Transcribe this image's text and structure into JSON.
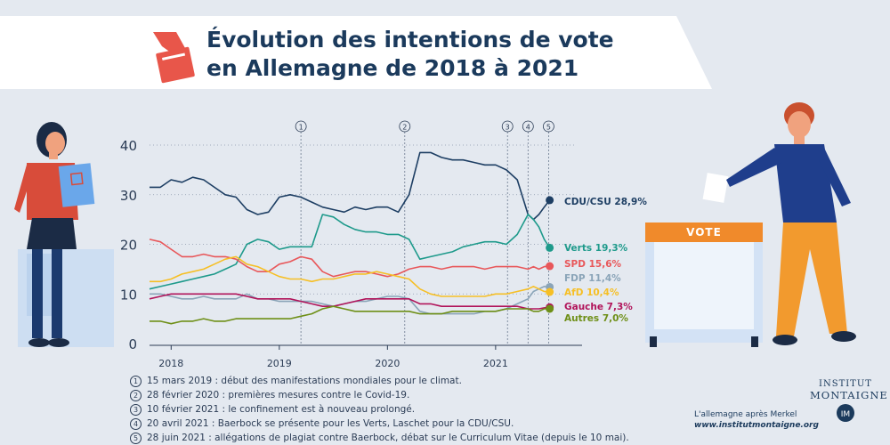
{
  "header": {
    "title_line1": "Évolution des intentions de vote",
    "title_line2": "en Allemagne de 2018 à 2021",
    "icon": "ballot-hand-icon"
  },
  "ballot_box_label": "VOTE",
  "footnotes": [
    {
      "num": "1",
      "text": "15 mars 2019 : début des manifestations mondiales pour le climat."
    },
    {
      "num": "2",
      "text": "28 février 2020 : premières mesures contre le Covid-19."
    },
    {
      "num": "3",
      "text": "10 février 2021 : le confinement est à nouveau prolongé."
    },
    {
      "num": "4",
      "text": "20 avril 2021 : Baerbock se présente pour les Verts, Laschet pour la CDU/CSU."
    },
    {
      "num": "5",
      "text": "28 juin 2021 : allégations de plagiat contre Baerbock, débat sur le Curriculum Vitae (depuis le 10 mai)."
    }
  ],
  "brand": {
    "line1": "L'allemagne après Merkel",
    "line2": "www.institutmontaigne.org",
    "logo_line1": "INSTITUT",
    "logo_line2": "MONTAIGNE"
  },
  "colors": {
    "banner": "#ffffff",
    "background": "#e4e9f0",
    "title": "#1b3a5c",
    "accent": "#f08a2b"
  },
  "chart_data": {
    "type": "line",
    "title": "",
    "xlabel": "",
    "ylabel": "",
    "ylim": [
      0,
      40
    ],
    "xlim": [
      2017.8,
      2021.75
    ],
    "yticks": [
      0,
      10,
      20,
      30,
      40
    ],
    "xticks": [
      "2018",
      "2019",
      "2020",
      "2021"
    ],
    "xtick_values": [
      2018.0,
      2019.0,
      2020.0,
      2021.0
    ],
    "grid": "y dotted",
    "events": [
      {
        "num": "1",
        "x": 2019.2
      },
      {
        "num": "2",
        "x": 2020.16
      },
      {
        "num": "3",
        "x": 2021.11
      },
      {
        "num": "4",
        "x": 2021.3
      },
      {
        "num": "5",
        "x": 2021.49
      }
    ],
    "series": [
      {
        "name": "CDU/CSU",
        "label": "CDU/CSU 28,9%",
        "color": "#1d3e63",
        "x": [
          2017.8,
          2017.9,
          2018.0,
          2018.1,
          2018.2,
          2018.3,
          2018.4,
          2018.5,
          2018.6,
          2018.7,
          2018.8,
          2018.9,
          2019.0,
          2019.1,
          2019.2,
          2019.3,
          2019.4,
          2019.5,
          2019.6,
          2019.7,
          2019.8,
          2019.9,
          2020.0,
          2020.1,
          2020.2,
          2020.3,
          2020.4,
          2020.5,
          2020.6,
          2020.7,
          2020.8,
          2020.9,
          2021.0,
          2021.1,
          2021.2,
          2021.3,
          2021.35,
          2021.4,
          2021.45,
          2021.5
        ],
        "y": [
          31.5,
          31.5,
          33,
          32.5,
          33.5,
          33,
          31.5,
          30,
          29.5,
          27,
          26,
          26.5,
          29.5,
          30,
          29.5,
          28.5,
          27.5,
          27,
          26.5,
          27.5,
          27,
          27.5,
          27.5,
          26.5,
          30,
          38.5,
          38.5,
          37.5,
          37,
          37,
          36.5,
          36,
          36,
          35,
          33,
          26,
          25,
          26,
          27.5,
          28.9
        ]
      },
      {
        "name": "Verts",
        "label": "Verts 19,3%",
        "color": "#1e9a8b",
        "x": [
          2017.8,
          2017.9,
          2018.0,
          2018.1,
          2018.2,
          2018.3,
          2018.4,
          2018.5,
          2018.6,
          2018.7,
          2018.8,
          2018.9,
          2019.0,
          2019.1,
          2019.2,
          2019.3,
          2019.4,
          2019.5,
          2019.6,
          2019.7,
          2019.8,
          2019.9,
          2020.0,
          2020.1,
          2020.2,
          2020.3,
          2020.4,
          2020.5,
          2020.6,
          2020.7,
          2020.8,
          2020.9,
          2021.0,
          2021.1,
          2021.2,
          2021.3,
          2021.35,
          2021.4,
          2021.45,
          2021.5
        ],
        "y": [
          11,
          11.5,
          12,
          12.5,
          13,
          13.5,
          14,
          15,
          16,
          20,
          21,
          20.5,
          19,
          19.5,
          19.5,
          19.5,
          26,
          25.5,
          24,
          23,
          22.5,
          22.5,
          22,
          22,
          21,
          17,
          17.5,
          18,
          18.5,
          19.5,
          20,
          20.5,
          20.5,
          20,
          22,
          26,
          25,
          23.5,
          21,
          19.3
        ]
      },
      {
        "name": "SPD",
        "label": "SPD 15,6%",
        "color": "#e8575a",
        "x": [
          2017.8,
          2017.9,
          2018.0,
          2018.1,
          2018.2,
          2018.3,
          2018.4,
          2018.5,
          2018.6,
          2018.7,
          2018.8,
          2018.9,
          2019.0,
          2019.1,
          2019.2,
          2019.3,
          2019.4,
          2019.5,
          2019.6,
          2019.7,
          2019.8,
          2019.9,
          2020.0,
          2020.1,
          2020.2,
          2020.3,
          2020.4,
          2020.5,
          2020.6,
          2020.7,
          2020.8,
          2020.9,
          2021.0,
          2021.1,
          2021.2,
          2021.3,
          2021.35,
          2021.4,
          2021.45,
          2021.5
        ],
        "y": [
          21,
          20.5,
          19,
          17.5,
          17.5,
          18,
          17.5,
          17.5,
          17,
          15.5,
          14.5,
          14.5,
          16,
          16.5,
          17.5,
          17,
          14.5,
          13.5,
          14,
          14.5,
          14.5,
          14,
          13.5,
          14,
          15,
          15.5,
          15.5,
          15,
          15.5,
          15.5,
          15.5,
          15,
          15.5,
          15.5,
          15.5,
          15,
          15.5,
          15,
          15.5,
          15.6
        ]
      },
      {
        "name": "FDP",
        "label": "FDP 11,4%",
        "color": "#8aa4b8",
        "x": [
          2017.8,
          2017.9,
          2018.0,
          2018.1,
          2018.2,
          2018.3,
          2018.4,
          2018.5,
          2018.6,
          2018.7,
          2018.8,
          2018.9,
          2019.0,
          2019.1,
          2019.2,
          2019.3,
          2019.4,
          2019.5,
          2019.6,
          2019.7,
          2019.8,
          2019.9,
          2020.0,
          2020.1,
          2020.2,
          2020.3,
          2020.4,
          2020.5,
          2020.6,
          2020.7,
          2020.8,
          2020.9,
          2021.0,
          2021.1,
          2021.2,
          2021.3,
          2021.35,
          2021.4,
          2021.45,
          2021.5
        ],
        "y": [
          10,
          10,
          9.5,
          9,
          9,
          9.5,
          9,
          9,
          9,
          10,
          9,
          9,
          8.5,
          8.5,
          8.5,
          8.5,
          8,
          7.5,
          8,
          8.5,
          8.5,
          9,
          9.5,
          9.5,
          9,
          6.5,
          6,
          6,
          6,
          6,
          6,
          6.5,
          6.5,
          7,
          8,
          9,
          10.5,
          11,
          11.5,
          11.4
        ]
      },
      {
        "name": "AfD",
        "label": "AfD 10,4%",
        "color": "#f6bf25",
        "x": [
          2017.8,
          2017.9,
          2018.0,
          2018.1,
          2018.2,
          2018.3,
          2018.4,
          2018.5,
          2018.6,
          2018.7,
          2018.8,
          2018.9,
          2019.0,
          2019.1,
          2019.2,
          2019.3,
          2019.4,
          2019.5,
          2019.6,
          2019.7,
          2019.8,
          2019.9,
          2020.0,
          2020.1,
          2020.2,
          2020.3,
          2020.4,
          2020.5,
          2020.6,
          2020.7,
          2020.8,
          2020.9,
          2021.0,
          2021.1,
          2021.2,
          2021.3,
          2021.35,
          2021.4,
          2021.45,
          2021.5
        ],
        "y": [
          12.5,
          12.5,
          13,
          14,
          14.5,
          15,
          16,
          17,
          17.5,
          16,
          15.5,
          14.5,
          13.5,
          13,
          13,
          12.5,
          13,
          13,
          13.5,
          14,
          14,
          14.5,
          14,
          13.5,
          13,
          11,
          10,
          9.5,
          9.5,
          9.5,
          9.5,
          9.5,
          10,
          10,
          10.5,
          11,
          11.5,
          11,
          10.5,
          10.4
        ]
      },
      {
        "name": "Gauche",
        "label": "Gauche 7,3%",
        "color": "#b1145a",
        "x": [
          2017.8,
          2017.9,
          2018.0,
          2018.1,
          2018.2,
          2018.3,
          2018.4,
          2018.5,
          2018.6,
          2018.7,
          2018.8,
          2018.9,
          2019.0,
          2019.1,
          2019.2,
          2019.3,
          2019.4,
          2019.5,
          2019.6,
          2019.7,
          2019.8,
          2019.9,
          2020.0,
          2020.1,
          2020.2,
          2020.3,
          2020.4,
          2020.5,
          2020.6,
          2020.7,
          2020.8,
          2020.9,
          2021.0,
          2021.1,
          2021.2,
          2021.3,
          2021.35,
          2021.4,
          2021.45,
          2021.5
        ],
        "y": [
          9,
          9.5,
          10,
          10,
          10,
          10,
          10,
          10,
          10,
          9.5,
          9,
          9,
          9,
          9,
          8.5,
          8,
          7.5,
          7.5,
          8,
          8.5,
          9,
          9,
          9,
          9,
          9,
          8,
          8,
          7.5,
          7.5,
          7.5,
          7.5,
          7.5,
          7.5,
          7.5,
          7.5,
          7,
          7,
          7,
          7.2,
          7.3
        ]
      },
      {
        "name": "Autres",
        "label": "Autres 7,0%",
        "color": "#6e8f17",
        "x": [
          2017.8,
          2017.9,
          2018.0,
          2018.1,
          2018.2,
          2018.3,
          2018.4,
          2018.5,
          2018.6,
          2018.7,
          2018.8,
          2018.9,
          2019.0,
          2019.1,
          2019.2,
          2019.3,
          2019.4,
          2019.5,
          2019.6,
          2019.7,
          2019.8,
          2019.9,
          2020.0,
          2020.1,
          2020.2,
          2020.3,
          2020.4,
          2020.5,
          2020.6,
          2020.7,
          2020.8,
          2020.9,
          2021.0,
          2021.1,
          2021.2,
          2021.3,
          2021.35,
          2021.4,
          2021.45,
          2021.5
        ],
        "y": [
          4.5,
          4.5,
          4,
          4.5,
          4.5,
          5,
          4.5,
          4.5,
          5,
          5,
          5,
          5,
          5,
          5,
          5.5,
          6,
          7,
          7.5,
          7,
          6.5,
          6.5,
          6.5,
          6.5,
          6.5,
          6.5,
          6,
          6,
          6,
          6.5,
          6.5,
          6.5,
          6.5,
          6.5,
          7,
          7,
          7,
          6.5,
          6.5,
          7,
          7.0
        ]
      }
    ]
  }
}
